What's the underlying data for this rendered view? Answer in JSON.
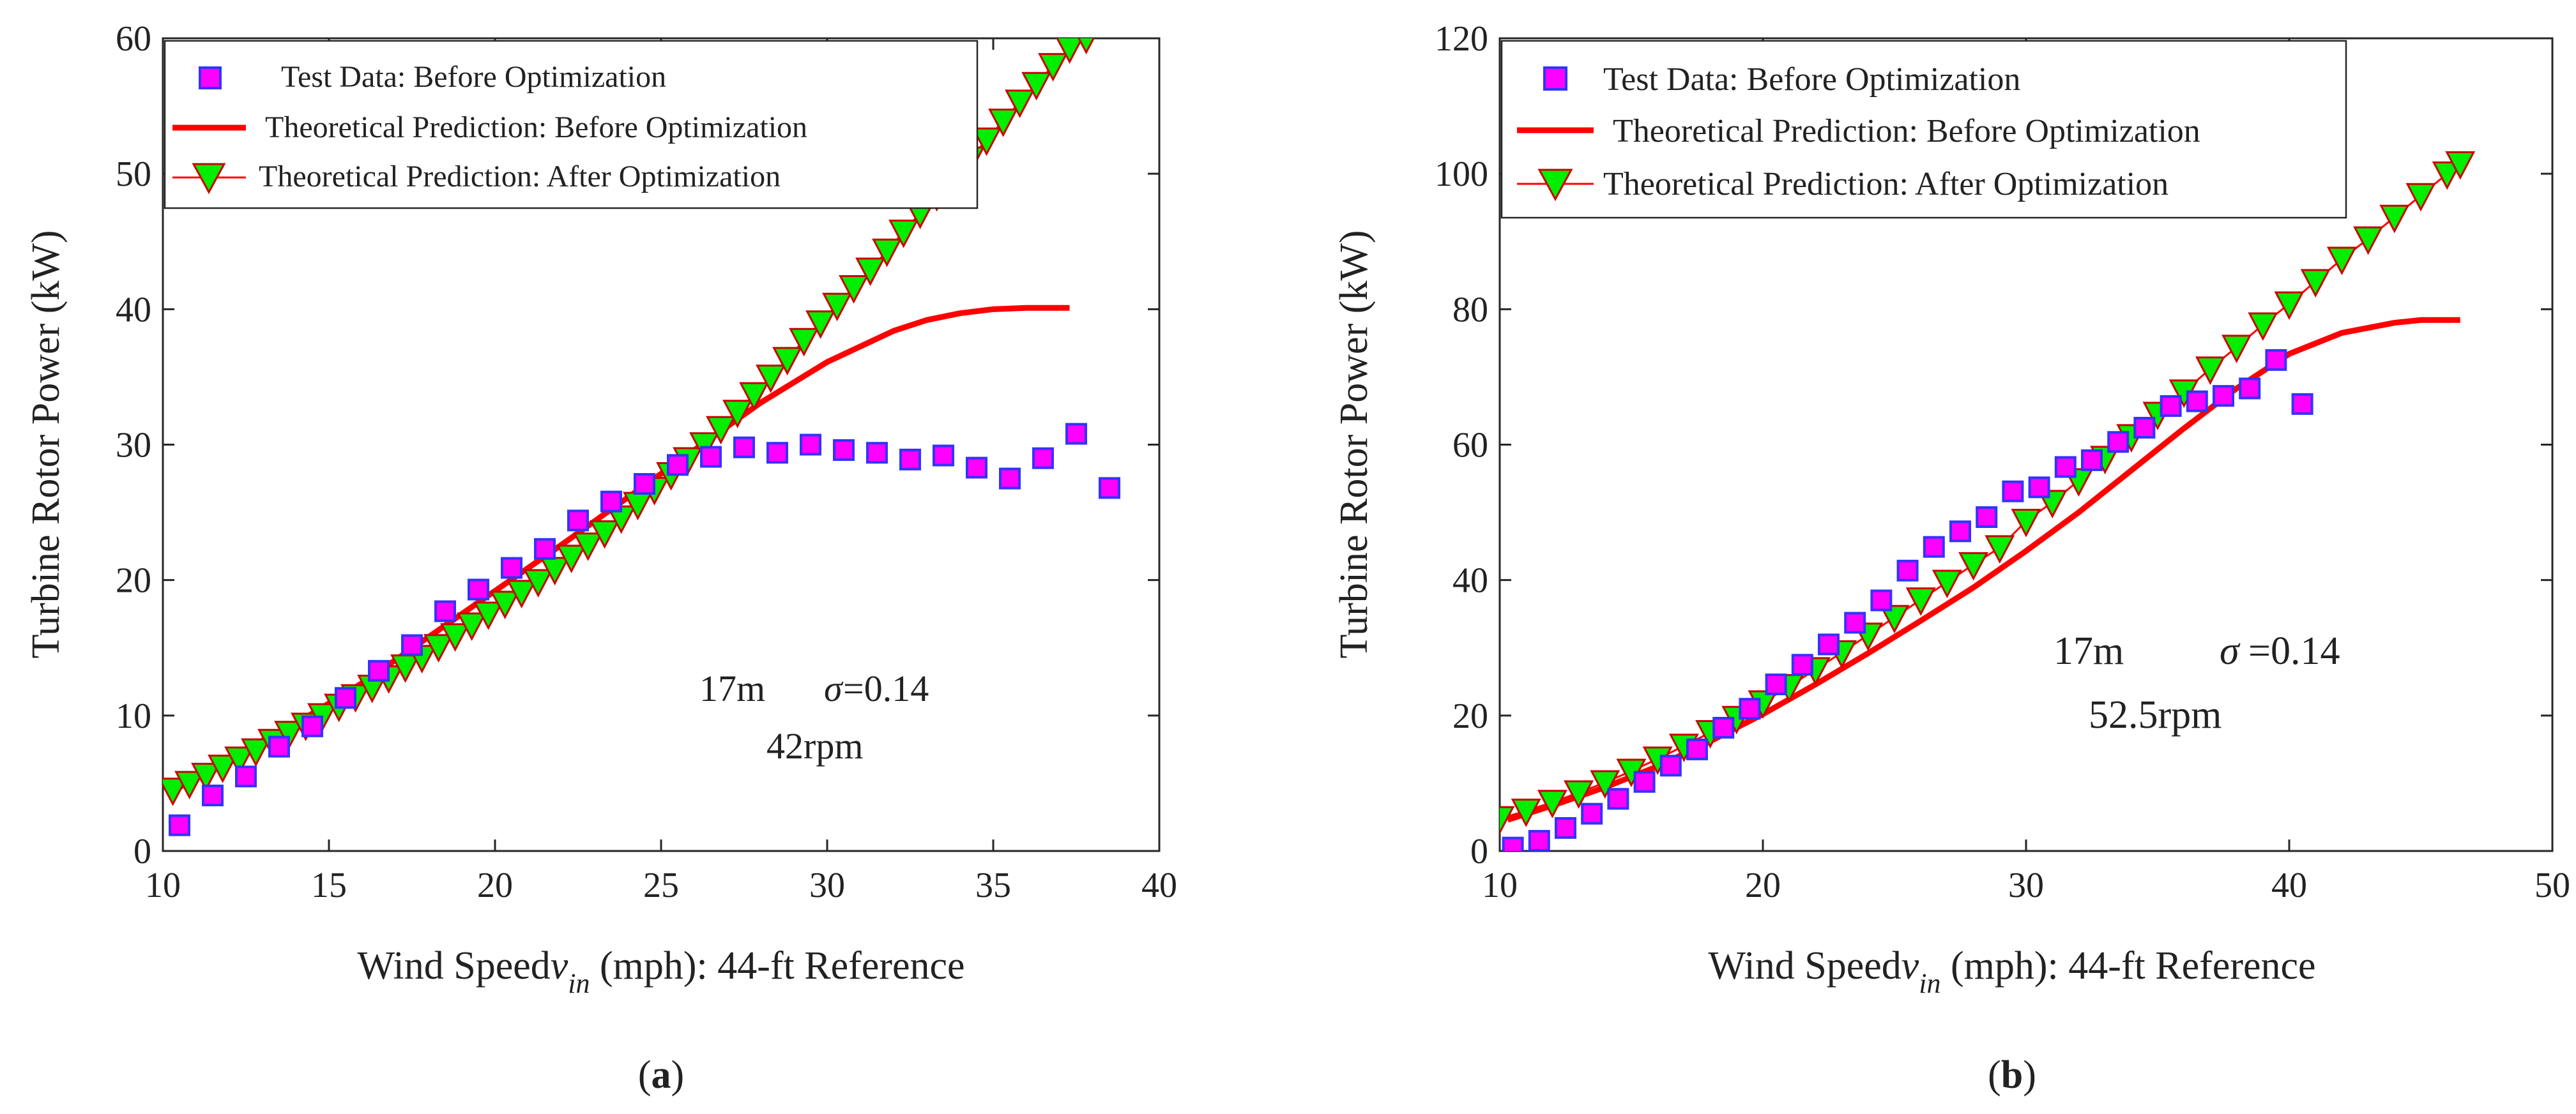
{
  "figure": {
    "panel_a_label": "a",
    "panel_b_label": "b"
  },
  "chart_data": [
    {
      "type": "scatter",
      "panel": "a",
      "xlabel_main": "Wind Speed",
      "xlabel_var": "v",
      "xlabel_sub": "in",
      "xlabel_rest": " (mph): 44-ft Reference",
      "ylabel": "Turbine Rotor Power (kW)",
      "xlim": [
        10,
        40
      ],
      "ylim": [
        0,
        60
      ],
      "xticks": [
        10,
        15,
        20,
        25,
        30,
        35,
        40
      ],
      "yticks": [
        0,
        10,
        20,
        30,
        40,
        50,
        60
      ],
      "legend_position": "top-left",
      "annotation": {
        "line1": "17m",
        "sigma": "σ",
        "sigma_value": "=0.14",
        "line2": "42rpm"
      },
      "series": [
        {
          "name": "Test Data: Before Optimization",
          "kind": "square-markers",
          "color": "#ff00ff",
          "edge": "#3333ff",
          "x": [
            10.5,
            11.5,
            12.5,
            13.5,
            14.5,
            15.5,
            16.5,
            17.5,
            18.5,
            19.5,
            20.5,
            21.5,
            22.5,
            23.5,
            24.5,
            25.5,
            26.5,
            27.5,
            28.5,
            29.5,
            30.5,
            31.5,
            32.5,
            33.5,
            34.5,
            35.5,
            36.5,
            37.5,
            38.5
          ],
          "y": [
            1.9,
            4.1,
            5.5,
            7.7,
            9.2,
            11.3,
            13.3,
            15.2,
            17.7,
            19.3,
            20.9,
            22.3,
            24.4,
            25.8,
            27.1,
            28.5,
            29.1,
            29.8,
            29.4,
            30.0,
            29.6,
            29.4,
            28.9,
            29.2,
            28.3,
            27.5,
            29.0,
            30.8,
            26.8
          ]
        },
        {
          "name": "Theoretical Prediction: Before Optimization",
          "kind": "line",
          "color": "#ff0000",
          "x": [
            10.5,
            12,
            14,
            16,
            18,
            20,
            22,
            24,
            26,
            28,
            30,
            32,
            33,
            34,
            35,
            36,
            37.3
          ],
          "y": [
            4.7,
            6.9,
            9.4,
            12.4,
            15.8,
            19.2,
            22.6,
            26.1,
            29.6,
            33.1,
            36.1,
            38.4,
            39.2,
            39.7,
            40.0,
            40.1,
            40.1
          ]
        },
        {
          "name": "Theoretical Prediction: After Optimization",
          "kind": "triangle-line",
          "color": "#ff0000",
          "marker": "#00ee00",
          "x": [
            10.3,
            10.8,
            11.3,
            11.8,
            12.3,
            12.8,
            13.3,
            13.8,
            14.3,
            14.8,
            15.3,
            15.8,
            16.3,
            16.8,
            17.3,
            17.8,
            18.3,
            18.8,
            19.3,
            19.8,
            20.3,
            20.8,
            21.3,
            21.8,
            22.3,
            22.8,
            23.3,
            23.8,
            24.3,
            24.8,
            25.3,
            25.8,
            26.3,
            26.8,
            27.3,
            27.8,
            28.3,
            28.8,
            29.3,
            29.8,
            30.3,
            30.8,
            31.3,
            31.8,
            32.3,
            32.8,
            33.3,
            33.8,
            34.3,
            34.8,
            35.3,
            35.8,
            36.3,
            36.8,
            37.3,
            37.8
          ],
          "y": [
            4.5,
            5.0,
            5.6,
            6.2,
            6.8,
            7.4,
            8.1,
            8.7,
            9.3,
            10.0,
            10.7,
            11.4,
            12.1,
            12.8,
            13.6,
            14.3,
            15.1,
            15.9,
            16.7,
            17.5,
            18.3,
            19.1,
            19.9,
            20.8,
            21.7,
            22.6,
            23.5,
            24.6,
            25.6,
            26.7,
            27.8,
            28.9,
            30.0,
            31.2,
            32.4,
            33.7,
            35.0,
            36.3,
            37.7,
            39.0,
            40.3,
            41.6,
            42.9,
            44.3,
            45.7,
            47.1,
            48.4,
            49.8,
            51.1,
            52.5,
            53.9,
            55.3,
            56.6,
            58.0,
            59.3,
            60.0
          ]
        }
      ]
    },
    {
      "type": "scatter",
      "panel": "b",
      "xlabel_main": "Wind Speed",
      "xlabel_var": "v",
      "xlabel_sub": "in",
      "xlabel_rest": " (mph): 44-ft Reference",
      "ylabel": "Turbine Rotor Power (kW)",
      "xlim": [
        10,
        50
      ],
      "ylim": [
        0,
        120
      ],
      "xticks": [
        10,
        20,
        30,
        40,
        50
      ],
      "yticks": [
        0,
        20,
        40,
        60,
        80,
        100,
        120
      ],
      "legend_position": "top-left",
      "annotation": {
        "line1": "17m",
        "sigma": "σ",
        "sigma_value": "=0.14",
        "line2": "52.5rpm"
      },
      "series": [
        {
          "name": "Test Data: Before Optimization",
          "kind": "square-markers",
          "color": "#ff00ff",
          "edge": "#3333ff",
          "x": [
            10.5,
            11.5,
            12.5,
            13.5,
            14.5,
            15.5,
            16.5,
            17.5,
            18.5,
            19.5,
            20.5,
            21.5,
            22.5,
            23.5,
            24.5,
            25.5,
            26.5,
            27.5,
            28.5,
            29.5,
            30.5,
            31.5,
            32.5,
            33.5,
            34.5,
            35.5,
            36.5,
            37.5,
            38.5,
            39.5,
            40.5
          ],
          "y": [
            0.5,
            1.5,
            3.4,
            5.5,
            7.7,
            10.2,
            12.6,
            15.0,
            18.2,
            21.0,
            24.6,
            27.5,
            30.5,
            33.7,
            37.0,
            41.4,
            44.9,
            47.2,
            49.3,
            53.1,
            53.7,
            56.7,
            57.7,
            60.4,
            62.5,
            65.7,
            66.4,
            67.2,
            68.3,
            72.5,
            66.0
          ]
        },
        {
          "name": "Theoretical Prediction: Before Optimization",
          "kind": "line",
          "color": "#ff0000",
          "x": [
            10.3,
            12,
            14,
            16,
            18,
            20,
            22,
            24,
            26,
            28,
            30,
            32,
            34,
            36,
            38,
            40,
            42,
            44,
            45,
            46.5
          ],
          "y": [
            4.6,
            6.7,
            9.4,
            12.5,
            16.2,
            20.2,
            24.6,
            29.2,
            34.0,
            38.9,
            44.3,
            50.0,
            56.2,
            62.4,
            68.3,
            73.4,
            76.5,
            78.0,
            78.4,
            78.4
          ]
        },
        {
          "name": "Theoretical Prediction: After Optimization",
          "kind": "triangle-line",
          "color": "#ff0000",
          "marker": "#00ee00",
          "x": [
            10.0,
            11.0,
            12.0,
            13.0,
            14.0,
            15.0,
            16.0,
            17.0,
            18.0,
            19.0,
            20.0,
            21.0,
            22.0,
            23.0,
            24.0,
            25.0,
            26.0,
            27.0,
            28.0,
            29.0,
            30.0,
            31.0,
            32.0,
            33.0,
            34.0,
            35.0,
            36.0,
            37.0,
            38.0,
            39.0,
            40.0,
            41.0,
            42.0,
            43.0,
            44.0,
            45.0,
            46.0,
            46.5
          ],
          "y": [
            4.8,
            5.9,
            7.2,
            8.6,
            10.1,
            11.8,
            13.6,
            15.5,
            17.5,
            19.6,
            21.9,
            24.3,
            26.8,
            29.3,
            31.9,
            34.5,
            37.1,
            39.7,
            42.3,
            44.8,
            48.7,
            51.5,
            54.7,
            58.0,
            61.2,
            64.5,
            67.8,
            71.2,
            74.4,
            77.7,
            80.8,
            84.1,
            87.4,
            90.4,
            93.6,
            96.8,
            100.0,
            101.5
          ]
        }
      ]
    }
  ]
}
